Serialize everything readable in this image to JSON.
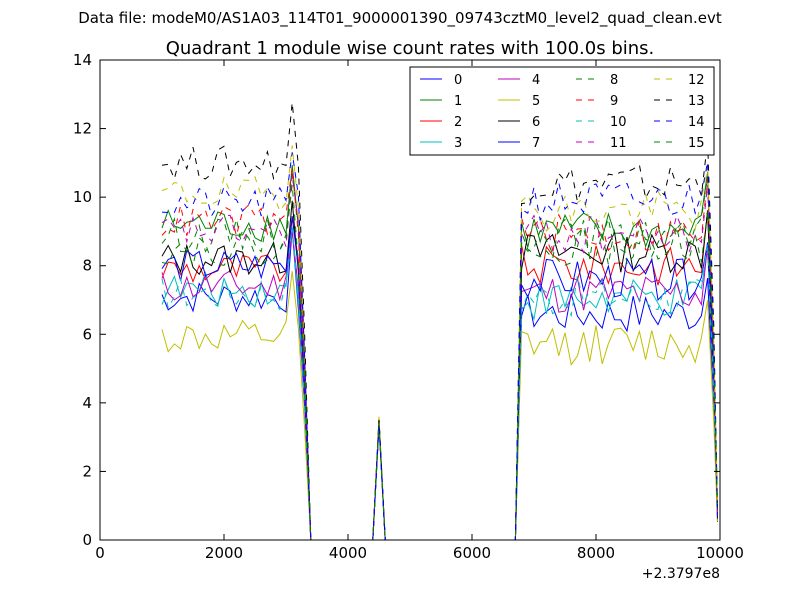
{
  "figure": {
    "suptitle": "Data file: modeM0/AS1A03_114T01_9000001390_09743cztM0_level2_quad_clean.evt"
  },
  "chart_data": {
    "type": "line",
    "title": "Quadrant 1 module wise count rates with 100.0s bins.",
    "xlabel": "",
    "ylabel": "",
    "offset_label": "+2.3797e8",
    "xlim": [
      0,
      10000
    ],
    "ylim": [
      0,
      14
    ],
    "xticks": [
      0,
      2000,
      4000,
      6000,
      8000,
      10000
    ],
    "yticks": [
      0,
      2,
      4,
      6,
      8,
      10,
      12,
      14
    ],
    "xtick_labels": [
      "0",
      "2000",
      "4000",
      "6000",
      "8000",
      "10000"
    ],
    "ytick_labels": [
      "0",
      "2",
      "4",
      "6",
      "8",
      "10",
      "12",
      "14"
    ],
    "legend_position": "top-right",
    "legend_columns": 4,
    "segments": [
      {
        "name": "block1",
        "x_start": 1000,
        "x_end": 3200,
        "bins": 23
      },
      {
        "name": "burst",
        "x": [
          4400,
          4500,
          4600
        ]
      },
      {
        "name": "block2",
        "x_start": 6800,
        "x_end": 9900,
        "bins": 32
      }
    ],
    "series": [
      {
        "name": "0",
        "color": "#0000ff",
        "dashed": false,
        "level1": 7.1,
        "level2": 6.6,
        "burst_peak": 3.4
      },
      {
        "name": "1",
        "color": "#008000",
        "dashed": false,
        "level1": 9.2,
        "level2": 9.0,
        "burst_peak": 3.5
      },
      {
        "name": "2",
        "color": "#ff0000",
        "dashed": false,
        "level1": 7.9,
        "level2": 8.0,
        "burst_peak": 3.4
      },
      {
        "name": "3",
        "color": "#00bfbf",
        "dashed": false,
        "level1": 7.3,
        "level2": 7.0,
        "burst_peak": 3.3
      },
      {
        "name": "4",
        "color": "#bf00bf",
        "dashed": false,
        "level1": 7.4,
        "level2": 7.2,
        "burst_peak": 3.4
      },
      {
        "name": "5",
        "color": "#bfbf00",
        "dashed": false,
        "level1": 5.9,
        "level2": 5.7,
        "burst_peak": 3.6
      },
      {
        "name": "6",
        "color": "#000000",
        "dashed": false,
        "level1": 8.2,
        "level2": 8.4,
        "burst_peak": 3.5
      },
      {
        "name": "7",
        "color": "#0000ff",
        "dashed": false,
        "level1": 8.0,
        "level2": 7.6,
        "burst_peak": 3.4
      },
      {
        "name": "8",
        "color": "#008000",
        "dashed": true,
        "level1": 8.9,
        "level2": 8.8,
        "burst_peak": 3.5
      },
      {
        "name": "9",
        "color": "#ff0000",
        "dashed": true,
        "level1": 9.3,
        "level2": 8.9,
        "burst_peak": 3.4
      },
      {
        "name": "10",
        "color": "#00bfbf",
        "dashed": true,
        "level1": 7.2,
        "level2": 7.1,
        "burst_peak": 3.3
      },
      {
        "name": "11",
        "color": "#bf00bf",
        "dashed": true,
        "level1": 9.0,
        "level2": 8.9,
        "burst_peak": 3.5
      },
      {
        "name": "12",
        "color": "#bfbf00",
        "dashed": true,
        "level1": 10.1,
        "level2": 9.6,
        "burst_peak": 3.6
      },
      {
        "name": "13",
        "color": "#000000",
        "dashed": true,
        "level1": 11.0,
        "level2": 10.4,
        "burst_peak": 3.5
      },
      {
        "name": "14",
        "color": "#0000ff",
        "dashed": true,
        "level1": 9.8,
        "level2": 9.9,
        "burst_peak": 3.4
      },
      {
        "name": "15",
        "color": "#008000",
        "dashed": true,
        "level1": 8.5,
        "level2": 8.6,
        "burst_peak": 3.4
      }
    ]
  }
}
